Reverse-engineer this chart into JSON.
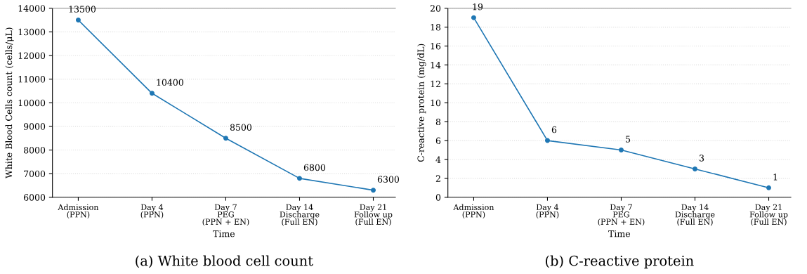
{
  "chart_data": [
    {
      "type": "line",
      "xlabel": "Time",
      "ylabel": "White Blood Cells count (cells/μL)",
      "categories": [
        "Admission\n(PPN)",
        "Day 4\n(PPN)",
        "Day 7\nPEG\n(PPN + EN)",
        "Day 14\nDischarge\n(Full EN)",
        "Day 21\nFollow up\n(Full EN)"
      ],
      "series": [
        {
          "color": "#1f77b4",
          "values": [
            13500,
            10400,
            8500,
            6800,
            6300
          ]
        }
      ],
      "ylim": [
        6000,
        14000
      ],
      "yticks": [
        6000,
        7000,
        8000,
        9000,
        10000,
        11000,
        12000,
        13000,
        14000
      ],
      "grid": "y",
      "marker": "circle",
      "line_style": "solid",
      "data_labels": true,
      "annotations": [
        "(a) White blood cell count"
      ]
    },
    {
      "type": "line",
      "xlabel": "Time",
      "ylabel": "C-reactive protein (mg/dL)",
      "categories": [
        "Admission\n(PPN)",
        "Day 4\n(PPN)",
        "Day 7\nPEG\n(PPN + EN)",
        "Day 14\nDischarge\n(Full EN)",
        "Day 21\nFollow up\n(Full EN)"
      ],
      "series": [
        {
          "color": "#1f77b4",
          "values": [
            19,
            6,
            5,
            3,
            1
          ]
        }
      ],
      "ylim": [
        0,
        20
      ],
      "yticks": [
        0,
        2,
        4,
        6,
        8,
        10,
        12,
        14,
        16,
        18,
        20
      ],
      "grid": "y",
      "marker": "circle",
      "line_style": "solid",
      "data_labels": true,
      "annotations": [
        "(b) C-reactive protein"
      ]
    }
  ]
}
